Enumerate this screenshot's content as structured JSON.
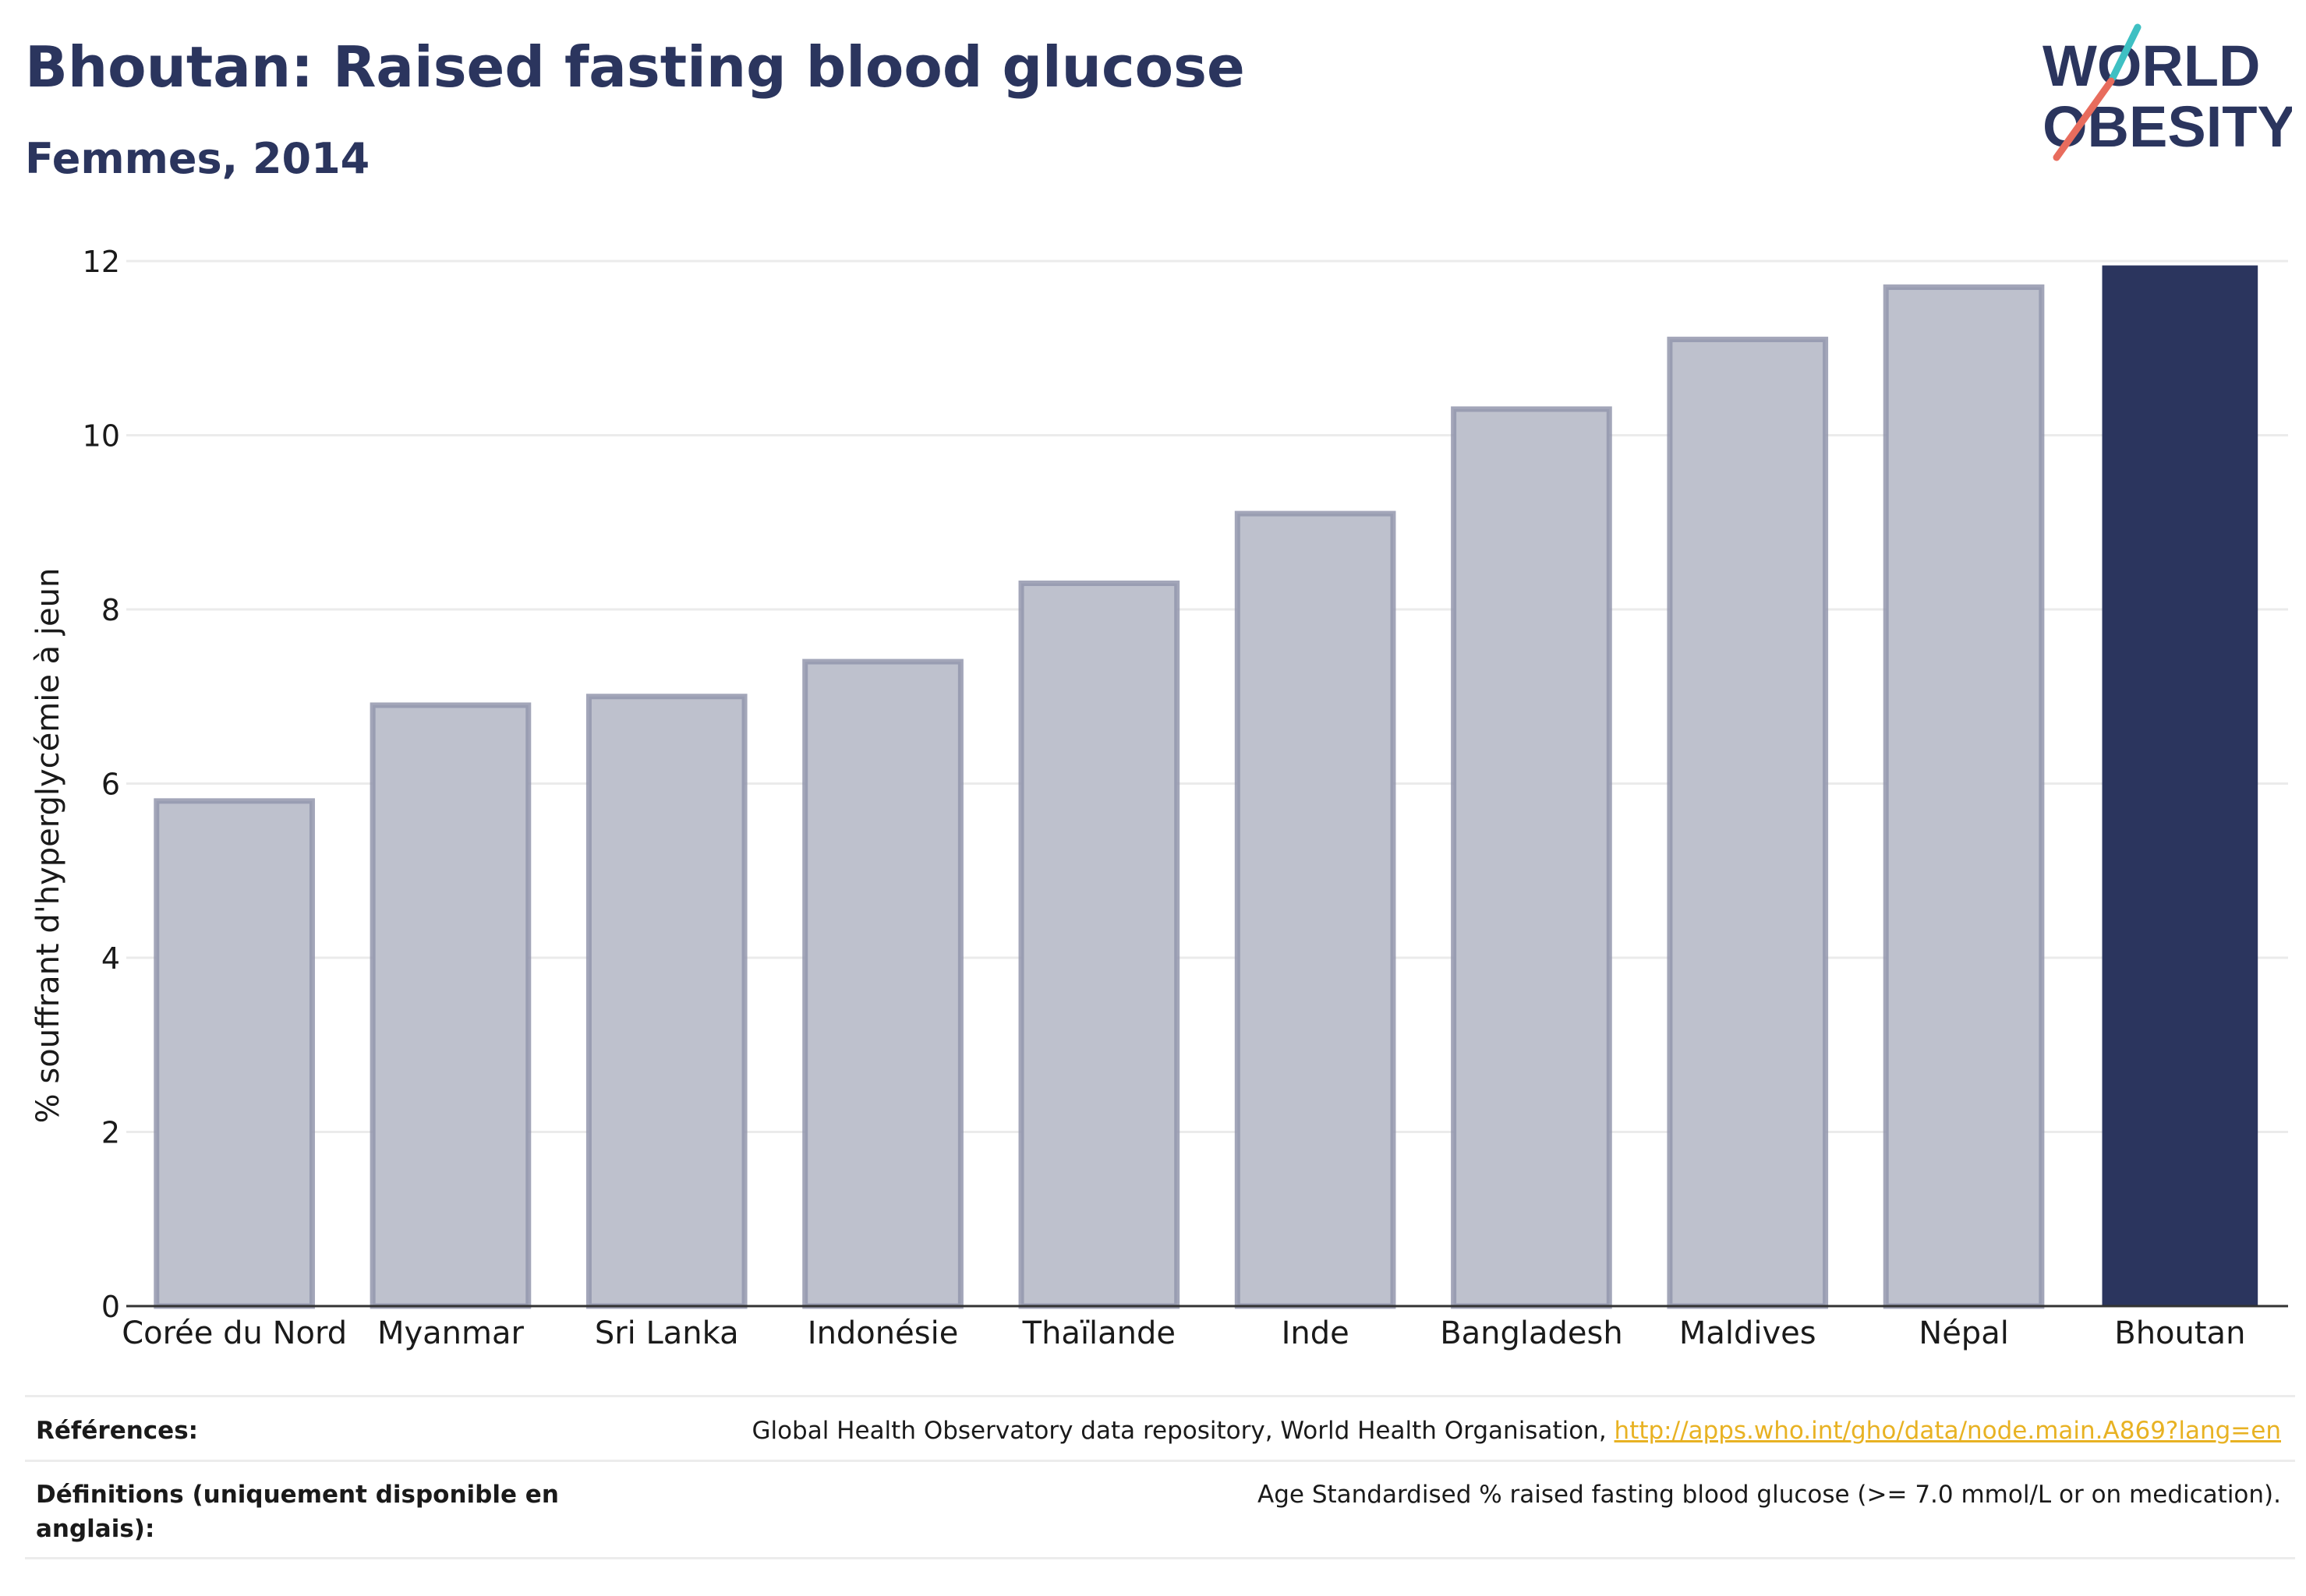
{
  "header": {
    "title": "Bhoutan: Raised fasting blood glucose",
    "subtitle": "Femmes, 2014"
  },
  "logo": {
    "line1": "WORLD",
    "line2": "OBESITY",
    "accent_colors": [
      "#3ec0c3",
      "#e86c5d"
    ]
  },
  "chart_data": {
    "type": "bar",
    "categories": [
      "Corée du Nord",
      "Myanmar",
      "Sri Lanka",
      "Indonésie",
      "Thaïlande",
      "Inde",
      "Bangladesh",
      "Maldives",
      "Népal",
      "Bhoutan"
    ],
    "values": [
      5.8,
      6.9,
      7.0,
      7.4,
      8.3,
      9.1,
      10.3,
      11.1,
      11.7,
      11.95
    ],
    "highlight": "Bhoutan",
    "ylabel": "% souffrant d'hyperglycémie à jeun",
    "xlabel": "",
    "ylim": [
      0,
      12
    ],
    "yticks": [
      0,
      2,
      4,
      6,
      8,
      10,
      12
    ],
    "grid": true,
    "colors": {
      "bar_fill": "#bec1cd",
      "bar_stroke": "#9397ad",
      "highlight_fill": "#2b355e",
      "grid": "#ebebeb",
      "axis": "#333333"
    }
  },
  "footer": {
    "references_label": "Références:",
    "references_text": "Global Health Observatory data repository, World Health Organisation, ",
    "references_link": "http://apps.who.int/gho/data/node.main.A869?lang=en",
    "definitions_label": "Définitions (uniquement disponible en anglais):",
    "definitions_text": "Age Standardised % raised fasting blood glucose (>= 7.0 mmol/L or on medication)."
  }
}
